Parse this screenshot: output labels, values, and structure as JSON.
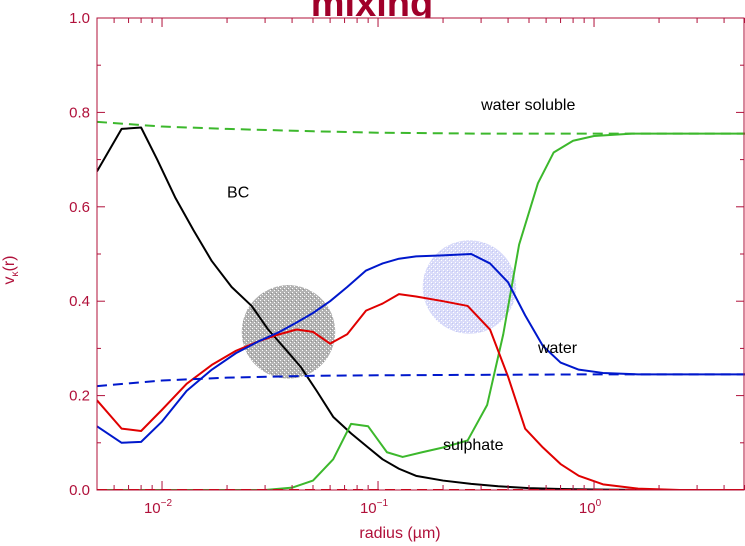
{
  "chart_data": {
    "type": "line",
    "title": "mixing",
    "xlabel": "radius (µm)",
    "ylabel": "v",
    "ylabel_sub": "κ",
    "ylabel_tail": "(r)",
    "x_scale": "log",
    "xlim": [
      0.005,
      5.0
    ],
    "ylim": [
      0,
      1.0
    ],
    "y_ticks": [
      "0.0",
      "0.2",
      "0.4",
      "0.6",
      "0.8",
      "1.0"
    ],
    "x_ticks": [
      {
        "base": "10",
        "exp": "−2"
      },
      {
        "base": "10",
        "exp": "−1"
      },
      {
        "base": "10",
        "exp": "0"
      }
    ],
    "grid": false,
    "series": [
      {
        "name": "BC",
        "color": "#000000",
        "style": "solid",
        "x": [
          0.005,
          0.0065,
          0.008,
          0.0095,
          0.0115,
          0.014,
          0.017,
          0.021,
          0.026,
          0.031,
          0.037,
          0.044,
          0.052,
          0.062,
          0.075,
          0.09,
          0.105,
          0.125,
          0.15,
          0.2,
          0.27,
          0.36,
          0.5,
          0.7,
          1.0,
          2.0,
          5.0
        ],
        "y": [
          0.675,
          0.765,
          0.768,
          0.7,
          0.62,
          0.55,
          0.485,
          0.43,
          0.39,
          0.34,
          0.3,
          0.26,
          0.21,
          0.155,
          0.12,
          0.09,
          0.065,
          0.045,
          0.03,
          0.02,
          0.013,
          0.008,
          0.004,
          0.002,
          0.001,
          0.0,
          0.0
        ]
      },
      {
        "name": "water soluble",
        "color": "#3cb82c",
        "style": "solid",
        "x": [
          0.005,
          0.01,
          0.02,
          0.03,
          0.04,
          0.05,
          0.062,
          0.075,
          0.09,
          0.11,
          0.13,
          0.16,
          0.2,
          0.26,
          0.32,
          0.38,
          0.45,
          0.55,
          0.65,
          0.8,
          1.0,
          1.5,
          2.5,
          5.0
        ],
        "y": [
          0.0,
          0.0,
          0.0,
          0.0,
          0.005,
          0.02,
          0.065,
          0.14,
          0.135,
          0.08,
          0.07,
          0.08,
          0.09,
          0.105,
          0.18,
          0.33,
          0.52,
          0.65,
          0.715,
          0.74,
          0.75,
          0.755,
          0.755,
          0.755
        ]
      },
      {
        "name": "sulphate",
        "color": "#e00000",
        "style": "solid",
        "x": [
          0.005,
          0.0065,
          0.008,
          0.01,
          0.013,
          0.017,
          0.022,
          0.028,
          0.035,
          0.042,
          0.05,
          0.06,
          0.072,
          0.088,
          0.105,
          0.125,
          0.15,
          0.2,
          0.26,
          0.33,
          0.4,
          0.48,
          0.58,
          0.7,
          0.85,
          1.1,
          1.6,
          2.5,
          5.0
        ],
        "y": [
          0.19,
          0.13,
          0.125,
          0.17,
          0.225,
          0.265,
          0.295,
          0.315,
          0.33,
          0.34,
          0.335,
          0.31,
          0.33,
          0.38,
          0.395,
          0.415,
          0.41,
          0.4,
          0.39,
          0.34,
          0.24,
          0.13,
          0.09,
          0.055,
          0.03,
          0.012,
          0.003,
          0.0,
          0.0
        ]
      },
      {
        "name": "water",
        "color": "#0018cc",
        "style": "solid",
        "x": [
          0.005,
          0.0065,
          0.008,
          0.01,
          0.013,
          0.017,
          0.022,
          0.028,
          0.035,
          0.042,
          0.05,
          0.06,
          0.072,
          0.088,
          0.105,
          0.125,
          0.15,
          0.2,
          0.27,
          0.33,
          0.4,
          0.48,
          0.58,
          0.7,
          0.85,
          1.1,
          1.6,
          2.5,
          5.0
        ],
        "y": [
          0.135,
          0.1,
          0.102,
          0.145,
          0.21,
          0.255,
          0.29,
          0.315,
          0.335,
          0.355,
          0.375,
          0.4,
          0.43,
          0.465,
          0.48,
          0.49,
          0.495,
          0.497,
          0.5,
          0.48,
          0.44,
          0.37,
          0.305,
          0.27,
          0.255,
          0.248,
          0.245,
          0.245,
          0.245
        ]
      },
      {
        "name": "water soluble (dashed)",
        "color": "#3cb82c",
        "style": "dashed",
        "x": [
          0.005,
          0.01,
          0.02,
          0.05,
          0.1,
          0.3,
          1.0,
          5.0
        ],
        "y": [
          0.78,
          0.77,
          0.765,
          0.76,
          0.757,
          0.755,
          0.755,
          0.755
        ]
      },
      {
        "name": "water (dashed)",
        "color": "#0018cc",
        "style": "dashed",
        "x": [
          0.005,
          0.01,
          0.02,
          0.05,
          0.1,
          0.3,
          1.0,
          5.0
        ],
        "y": [
          0.22,
          0.232,
          0.238,
          0.242,
          0.243,
          0.244,
          0.245,
          0.245
        ]
      },
      {
        "name": "BC (dashed)",
        "color": "#e00000",
        "style": "dashed",
        "x": [
          0.005,
          5.0
        ],
        "y": [
          0.0,
          0.0
        ]
      }
    ],
    "annotations": [
      {
        "text": "BC",
        "x": 0.02,
        "y": 0.62
      },
      {
        "text": "water soluble",
        "x": 0.3,
        "y": 0.805
      },
      {
        "text": "water",
        "x": 0.55,
        "y": 0.29
      },
      {
        "text": "sulphate",
        "x": 0.2,
        "y": 0.085
      }
    ],
    "highlight_circles": [
      {
        "cx": 0.0385,
        "cy": 0.335,
        "r_fraction": 0.11,
        "color": "#8c8c8c",
        "opacity": 0.75
      },
      {
        "cx": 0.265,
        "cy": 0.43,
        "r_fraction": 0.11,
        "color": "#b8c0f4",
        "opacity": 0.7
      }
    ]
  }
}
